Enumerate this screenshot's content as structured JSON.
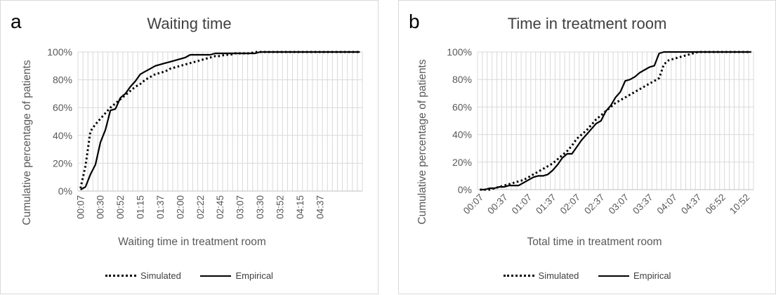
{
  "chart_data": [
    {
      "panel": "a",
      "type": "line",
      "title": "Waiting time",
      "xlabel": "Waiting time in treatment room",
      "ylabel": "Cumulative percentage of patients",
      "ylim": [
        0,
        100
      ],
      "yticks": [
        "0%",
        "20%",
        "40%",
        "60%",
        "80%",
        "100%"
      ],
      "xtick_labels": [
        "00:07",
        "00:30",
        "00:52",
        "01:15",
        "01:37",
        "02:00",
        "02:22",
        "02:45",
        "03:07",
        "03:30",
        "03:52",
        "04:15",
        "04:37"
      ],
      "n_categories": 57,
      "grid": true,
      "legend_position": "bottom",
      "series": [
        {
          "name": "Simulated",
          "style": "dotted",
          "values": [
            2,
            18,
            43,
            48,
            52,
            56,
            60,
            63,
            66,
            69,
            72,
            75,
            77,
            80,
            82,
            84,
            85,
            86,
            88,
            89,
            90,
            91,
            92,
            93,
            94,
            95,
            96,
            97,
            97,
            98,
            98,
            99,
            99,
            99,
            99,
            100,
            100,
            100,
            100,
            100,
            100,
            100,
            100,
            100,
            100,
            100,
            100,
            100,
            100,
            100,
            100,
            100,
            100,
            100,
            100,
            100,
            100
          ]
        },
        {
          "name": "Empirical",
          "style": "solid",
          "values": [
            1,
            3,
            12,
            19,
            35,
            44,
            58,
            59,
            67,
            70,
            75,
            79,
            84,
            86,
            88,
            90,
            91,
            92,
            93,
            94,
            95,
            96,
            98,
            98,
            98,
            98,
            98,
            99,
            99,
            99,
            99,
            99,
            99,
            99,
            99,
            99,
            100,
            100,
            100,
            100,
            100,
            100,
            100,
            100,
            100,
            100,
            100,
            100,
            100,
            100,
            100,
            100,
            100,
            100,
            100,
            100,
            100
          ]
        }
      ]
    },
    {
      "panel": "b",
      "type": "line",
      "title": "Time in treatment room",
      "xlabel": "Total time in treatment room",
      "ylabel": "Cumulative percentage of patients",
      "ylim": [
        0,
        100
      ],
      "yticks": [
        "0%",
        "20%",
        "40%",
        "60%",
        "80%",
        "100%"
      ],
      "xtick_labels": [
        "00:07",
        "00:37",
        "01:07",
        "01:37",
        "02:07",
        "02:37",
        "03:07",
        "03:37",
        "04:07",
        "04:37",
        "06:52",
        "10:52"
      ],
      "n_categories": 57,
      "grid": true,
      "legend_position": "bottom",
      "series": [
        {
          "name": "Simulated",
          "style": "dotted",
          "values": [
            0,
            0,
            0,
            1,
            2,
            3,
            4,
            5,
            6,
            7,
            9,
            11,
            13,
            15,
            17,
            19,
            22,
            25,
            28,
            32,
            37,
            40,
            43,
            47,
            51,
            54,
            57,
            60,
            63,
            65,
            67,
            69,
            71,
            73,
            75,
            77,
            79,
            81,
            91,
            94,
            95,
            96,
            97,
            98,
            99,
            100,
            100,
            100,
            100,
            100,
            100,
            100,
            100,
            100,
            100,
            100,
            100
          ]
        },
        {
          "name": "Empirical",
          "style": "solid",
          "values": [
            0,
            0,
            1,
            1,
            2,
            2,
            3,
            3,
            3,
            5,
            7,
            9,
            10,
            10,
            11,
            14,
            18,
            23,
            26,
            26,
            31,
            36,
            40,
            44,
            48,
            50,
            57,
            61,
            67,
            71,
            79,
            80,
            82,
            85,
            87,
            89,
            90,
            99,
            100,
            100,
            100,
            100,
            100,
            100,
            100,
            100,
            100,
            100,
            100,
            100,
            100,
            100,
            100,
            100,
            100,
            100,
            100
          ]
        }
      ]
    }
  ]
}
